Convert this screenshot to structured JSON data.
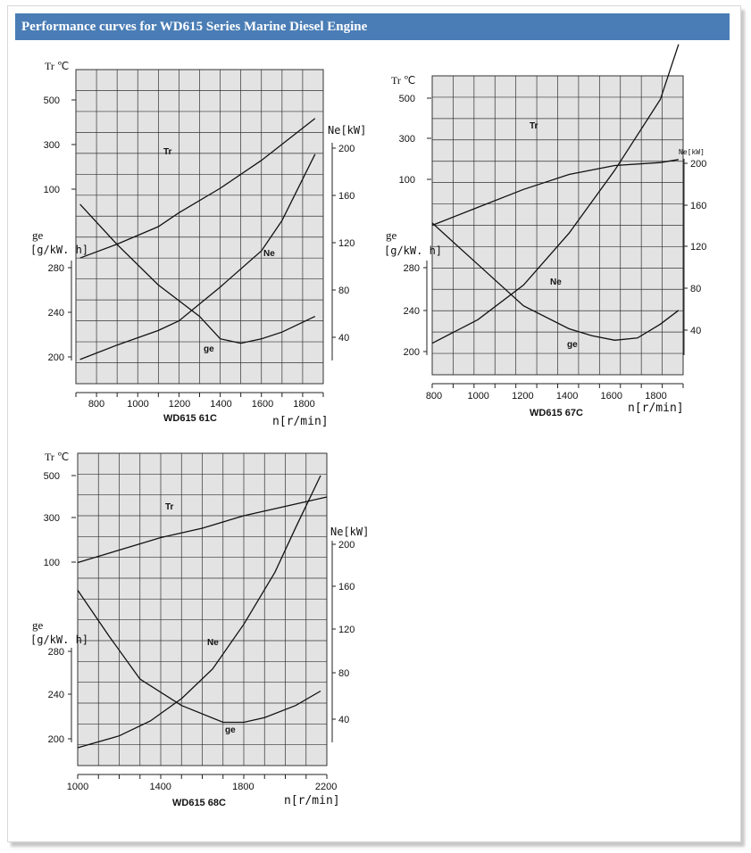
{
  "page": {
    "title": "Performance curves for WD615 Series Marine Diesel Engine"
  },
  "colors": {
    "header_bg": "#4a7db5",
    "plot_bg": "#e3e3e3",
    "grid": "#333333",
    "curve": "#111111"
  },
  "chart_data": [
    {
      "type": "line",
      "title": "WD615  61C",
      "xlabel": "n[r/min]",
      "xlim": [
        700,
        1900
      ],
      "xticks": [
        "800",
        "1000",
        "1200",
        "1400",
        "1600",
        "1800"
      ],
      "axes": {
        "tr": {
          "label": "Tr ℃",
          "range": [
            -200,
            700
          ],
          "ticks": [
            "500",
            "300",
            "100"
          ]
        },
        "ge": {
          "label": "ge",
          "unit": "[g/kW. h]",
          "range": [
            180,
            320
          ],
          "ticks": [
            "280",
            "240",
            "200"
          ]
        },
        "ne": {
          "label": "Ne[kW]",
          "range": [
            -10,
            250
          ],
          "ticks": [
            "200",
            "160",
            "120",
            "80",
            "40"
          ]
        }
      },
      "series": [
        {
          "name": "Tr",
          "axis": "tr",
          "x": [
            720,
            900,
            1100,
            1200,
            1400,
            1600,
            1860
          ],
          "y": [
            160,
            200,
            250,
            290,
            360,
            440,
            560
          ]
        },
        {
          "name": "Ne",
          "axis": "ne",
          "x": [
            720,
            900,
            1100,
            1200,
            1400,
            1600,
            1700,
            1860
          ],
          "y": [
            10,
            22,
            34,
            42,
            70,
            100,
            125,
            180
          ]
        },
        {
          "name": "ge",
          "axis": "ge",
          "x": [
            720,
            900,
            1100,
            1300,
            1400,
            1500,
            1600,
            1700,
            1860
          ],
          "y": [
            260,
            242,
            224,
            210,
            200,
            198,
            200,
            203,
            210
          ]
        }
      ]
    },
    {
      "type": "line",
      "title": "WD615  67C",
      "xlabel": "n[r/min]",
      "xlim": [
        800,
        1900
      ],
      "xticks": [
        "800",
        "1000",
        "1200",
        "1400",
        "1600",
        "1800"
      ],
      "axes": {
        "tr": {
          "label": "Tr ℃",
          "range": [
            -300,
            700
          ],
          "ticks": [
            "500",
            "300",
            "100"
          ]
        },
        "ge": {
          "label": "ge",
          "unit": "[g/kW. h]",
          "range": [
            190,
            320
          ],
          "ticks": [
            "280",
            "240",
            "200"
          ]
        },
        "ne": {
          "label": "Ne[kW]",
          "range": [
            20,
            210
          ],
          "ticks": [
            "200",
            "160",
            "120",
            "80",
            "40"
          ]
        }
      },
      "series": [
        {
          "name": "Tr",
          "axis": "tr",
          "x": [
            800,
            1000,
            1200,
            1400,
            1600,
            1800,
            1880
          ],
          "y": [
            200,
            260,
            320,
            370,
            400,
            410,
            420
          ]
        },
        {
          "name": "Ne",
          "axis": "ne",
          "x": [
            800,
            1000,
            1200,
            1400,
            1600,
            1800,
            1880
          ],
          "y": [
            40,
            55,
            77,
            110,
            150,
            195,
            230
          ]
        },
        {
          "name": "ge",
          "axis": "ge",
          "x": [
            800,
            1000,
            1200,
            1400,
            1500,
            1600,
            1700,
            1800,
            1880
          ],
          "y": [
            256,
            238,
            220,
            210,
            207,
            205,
            206,
            212,
            218
          ]
        }
      ]
    },
    {
      "type": "line",
      "title": "WD615  68C",
      "xlabel": "n[r/min]",
      "xlim": [
        1000,
        2200
      ],
      "xticks": [
        "1000",
        "1400",
        "1800",
        "2200"
      ],
      "axes": {
        "tr": {
          "label": "Tr ℃",
          "range": [
            -400,
            600
          ],
          "ticks": [
            "500",
            "300",
            "100"
          ]
        },
        "ge": {
          "label": "ge",
          "unit": "[g/kW. h]",
          "range": [
            180,
            310
          ],
          "ticks": [
            "280",
            "240",
            "200"
          ]
        },
        "ne": {
          "label": "Ne[kW]",
          "range": [
            10,
            220
          ],
          "ticks": [
            "200",
            "160",
            "120",
            "80",
            "40"
          ]
        }
      },
      "series": [
        {
          "name": "Tr",
          "axis": "tr",
          "x": [
            1000,
            1200,
            1400,
            1600,
            1800,
            2000,
            2200
          ],
          "y": [
            250,
            290,
            330,
            360,
            400,
            430,
            460
          ]
        },
        {
          "name": "Ne",
          "axis": "ne",
          "x": [
            1000,
            1200,
            1350,
            1500,
            1650,
            1800,
            1950,
            2050,
            2170
          ],
          "y": [
            22,
            30,
            40,
            55,
            75,
            105,
            140,
            170,
            205
          ]
        },
        {
          "name": "ge",
          "axis": "ge",
          "x": [
            1000,
            1150,
            1300,
            1500,
            1700,
            1800,
            1900,
            2050,
            2170
          ],
          "y": [
            253,
            234,
            216,
            205,
            198,
            198,
            200,
            205,
            211
          ]
        }
      ]
    }
  ]
}
